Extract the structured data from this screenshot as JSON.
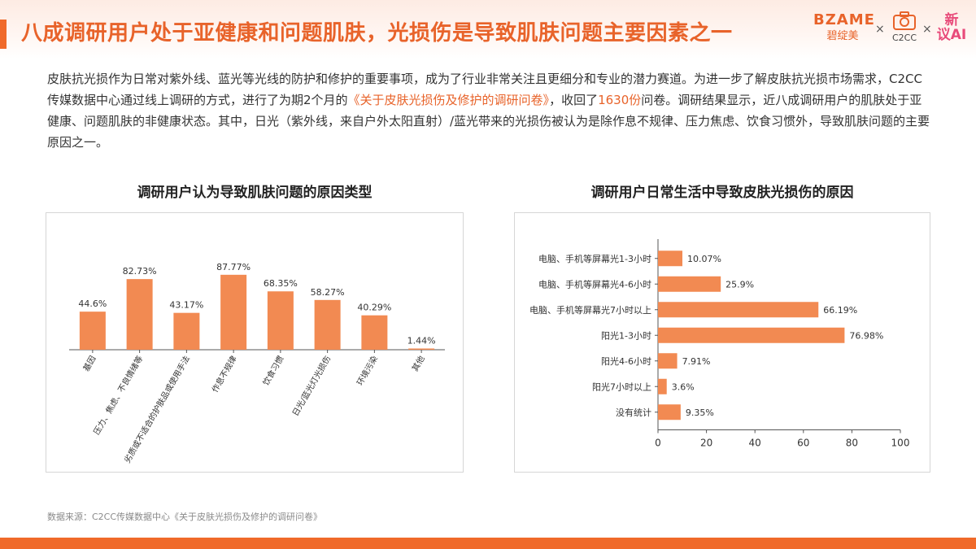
{
  "header": {
    "title": "八成调研用户处于亚健康和问题肌肤，光损伤是导致肌肤问题主要因素之一",
    "logos": {
      "bzame_line1": "BZAME",
      "bzame_line2": "碧绽美",
      "sep": "×",
      "c2cc": "C2CC",
      "xin_line1": "新",
      "xin_line2": "议AI"
    }
  },
  "intro": {
    "part1": "皮肤抗光损作为日常对紫外线、蓝光等光线的防护和修护的重要事项，成为了行业非常关注且更细分和专业的潜力赛道。为进一步了解皮肤抗光损市场需求，C2CC传媒数据中心通过线上调研的方式，进行了为期2个月的",
    "survey_name": "《关于皮肤光损伤及修护的调研问卷》",
    "part2": "，收回了",
    "count": "1630份",
    "part3": "问卷。调研结果显示，近八成调研用户的肌肤处于亚健康、问题肌肤的非健康状态。其中，日光（紫外线，来自户外太阳直射）/蓝光带来的光损伤被认为是除作息不规律、压力焦虑、饮食习惯外，导致肌肤问题的主要原因之一。"
  },
  "colors": {
    "accent": "#e8632a",
    "bar": "#f28a52",
    "axis": "#333333"
  },
  "chart_data": [
    {
      "type": "bar",
      "title": "调研用户认为导致肌肤问题的原因类型",
      "categories": [
        "基因",
        "压力、焦虑、不良情绪等",
        "劣质或不适合的护肤品或使用手法",
        "作息不规律",
        "饮食习惯",
        "日光/蓝光灯光损伤",
        "环境污染",
        "其他"
      ],
      "values": [
        44.6,
        82.73,
        43.17,
        87.77,
        68.35,
        58.27,
        40.29,
        1.44
      ],
      "value_labels": [
        "44.6%",
        "82.73%",
        "43.17%",
        "87.77%",
        "68.35%",
        "58.27%",
        "40.29%",
        "1.44%"
      ],
      "ylim": [
        0,
        100
      ]
    },
    {
      "type": "bar",
      "orientation": "horizontal",
      "title": "调研用户日常生活中导致皮肤光损伤的原因",
      "categories": [
        "电脑、手机等屏幕光1-3小时",
        "电脑、手机等屏幕光4-6小时",
        "电脑、手机等屏幕光7小时以上",
        "阳光1-3小时",
        "阳光4-6小时",
        "阳光7小时以上",
        "没有统计"
      ],
      "values": [
        10.07,
        25.9,
        66.19,
        76.98,
        7.91,
        3.6,
        9.35
      ],
      "value_labels": [
        "10.07%",
        "25.9%",
        "66.19%",
        "76.98%",
        "7.91%",
        "3.6%",
        "9.35%"
      ],
      "xlim": [
        0,
        100
      ],
      "xticks": [
        "0",
        "20",
        "40",
        "60",
        "80",
        "100"
      ]
    }
  ],
  "source": "数据来源：C2CC传媒数据中心《关于皮肤光损伤及修护的调研问卷》"
}
